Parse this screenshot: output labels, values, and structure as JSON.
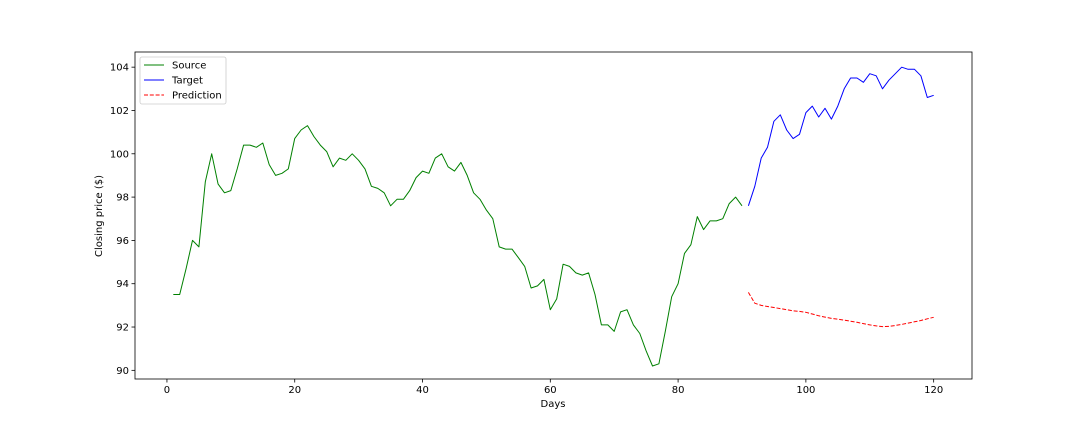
{
  "chart_data": {
    "type": "line",
    "title": "",
    "xlabel": "Days",
    "ylabel": "Closing price ($)",
    "xlim": [
      -5,
      126
    ],
    "ylim": [
      89.6,
      104.7
    ],
    "xticks": [
      0,
      20,
      40,
      60,
      80,
      100,
      120
    ],
    "yticks": [
      90,
      92,
      94,
      96,
      98,
      100,
      102,
      104
    ],
    "grid": false,
    "legend_position": "top-left",
    "series": [
      {
        "name": "Source",
        "color": "#008000",
        "dash": "solid",
        "x": [
          1,
          2,
          3,
          4,
          5,
          6,
          7,
          8,
          9,
          10,
          11,
          12,
          13,
          14,
          15,
          16,
          17,
          18,
          19,
          20,
          21,
          22,
          23,
          24,
          25,
          26,
          27,
          28,
          29,
          30,
          31,
          32,
          33,
          34,
          35,
          36,
          37,
          38,
          39,
          40,
          41,
          42,
          43,
          44,
          45,
          46,
          47,
          48,
          49,
          50,
          51,
          52,
          53,
          54,
          55,
          56,
          57,
          58,
          59,
          60,
          61,
          62,
          63,
          64,
          65,
          66,
          67,
          68,
          69,
          70,
          71,
          72,
          73,
          74,
          75,
          76,
          77,
          78,
          79,
          80,
          81,
          82,
          83,
          84,
          85,
          86,
          87,
          88,
          89,
          90
        ],
        "y": [
          93.5,
          93.5,
          94.7,
          96.0,
          95.7,
          98.7,
          100.0,
          98.6,
          98.2,
          98.3,
          99.3,
          100.4,
          100.4,
          100.3,
          100.5,
          99.5,
          99.0,
          99.1,
          99.3,
          100.7,
          101.1,
          101.3,
          100.8,
          100.4,
          100.1,
          99.4,
          99.8,
          99.7,
          100.0,
          99.7,
          99.3,
          98.5,
          98.4,
          98.2,
          97.6,
          97.9,
          97.9,
          98.3,
          98.9,
          99.2,
          99.1,
          99.8,
          100.0,
          99.4,
          99.2,
          99.6,
          99.0,
          98.2,
          97.9,
          97.4,
          97.0,
          95.7,
          95.6,
          95.6,
          95.2,
          94.8,
          93.8,
          93.9,
          94.2,
          92.8,
          93.3,
          94.9,
          94.8,
          94.5,
          94.4,
          94.5,
          93.5,
          92.1,
          92.1,
          91.8,
          92.7,
          92.8,
          92.1,
          91.7,
          90.9,
          90.2,
          90.3,
          91.8,
          93.4,
          94.0,
          95.4,
          95.8,
          97.1,
          96.5,
          96.9,
          96.9,
          97.0,
          97.7,
          98.0,
          97.6
        ]
      },
      {
        "name": "Target",
        "color": "#0000ff",
        "dash": "solid",
        "x": [
          91,
          92,
          93,
          94,
          95,
          96,
          97,
          98,
          99,
          100,
          101,
          102,
          103,
          104,
          105,
          106,
          107,
          108,
          109,
          110,
          111,
          112,
          113,
          114,
          115,
          116,
          117,
          118,
          119,
          120
        ],
        "y": [
          97.6,
          98.5,
          99.8,
          100.3,
          101.5,
          101.8,
          101.1,
          100.7,
          100.9,
          101.9,
          102.2,
          101.7,
          102.1,
          101.6,
          102.2,
          103.0,
          103.5,
          103.5,
          103.3,
          103.7,
          103.6,
          103.0,
          103.4,
          103.7,
          104.0,
          103.9,
          103.9,
          103.6,
          102.6,
          102.7
        ]
      },
      {
        "name": "Prediction",
        "color": "#ff0000",
        "dash": "dashed",
        "x": [
          91,
          92,
          93,
          94,
          95,
          96,
          97,
          98,
          99,
          100,
          101,
          102,
          103,
          104,
          105,
          106,
          107,
          108,
          109,
          110,
          111,
          112,
          113,
          114,
          115,
          116,
          117,
          118,
          119,
          120
        ],
        "y": [
          93.6,
          93.1,
          93.0,
          92.95,
          92.9,
          92.85,
          92.8,
          92.75,
          92.72,
          92.68,
          92.6,
          92.52,
          92.46,
          92.4,
          92.36,
          92.32,
          92.27,
          92.22,
          92.16,
          92.1,
          92.05,
          92.02,
          92.03,
          92.07,
          92.12,
          92.18,
          92.24,
          92.3,
          92.38,
          92.45
        ]
      }
    ]
  }
}
